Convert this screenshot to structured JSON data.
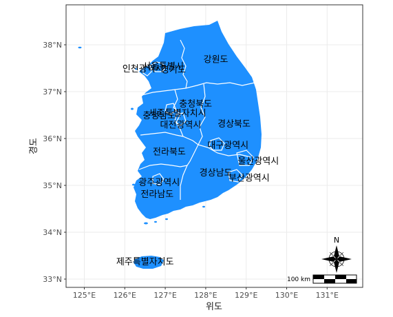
{
  "map": {
    "fill_color": "#1e90ff",
    "border_color": "#ffffff",
    "panel_border": "#333333",
    "grid_color": "#ebebeb",
    "axes": {
      "xlabel": "위도",
      "ylabel": "경도",
      "x_ticks": [
        "125°E",
        "126°E",
        "127°E",
        "128°E",
        "129°E",
        "130°E",
        "131°E"
      ],
      "y_ticks": [
        "38°N",
        "37°N",
        "36°N",
        "35°N",
        "34°N",
        "33°N"
      ],
      "x_range": [
        124.5,
        131.8
      ],
      "y_range": [
        32.85,
        38.9
      ]
    },
    "regions": [
      {
        "name": "인천광역시",
        "lon": 126.45,
        "lat": 37.5
      },
      {
        "name": "서울특별시",
        "lon": 126.95,
        "lat": 37.55
      },
      {
        "name": "경기도",
        "lon": 127.2,
        "lat": 37.48
      },
      {
        "name": "강원도",
        "lon": 128.25,
        "lat": 37.7
      },
      {
        "name": "충청북도",
        "lon": 127.75,
        "lat": 36.75
      },
      {
        "name": "세종특별자치시",
        "lon": 127.3,
        "lat": 36.55
      },
      {
        "name": "충청남도",
        "lon": 126.85,
        "lat": 36.5
      },
      {
        "name": "대전광역시",
        "lon": 127.38,
        "lat": 36.3
      },
      {
        "name": "경상북도",
        "lon": 128.7,
        "lat": 36.32
      },
      {
        "name": "전라북도",
        "lon": 127.1,
        "lat": 35.73
      },
      {
        "name": "대구광역시",
        "lon": 128.55,
        "lat": 35.87
      },
      {
        "name": "울산광역시",
        "lon": 129.3,
        "lat": 35.53
      },
      {
        "name": "경상남도",
        "lon": 128.25,
        "lat": 35.28
      },
      {
        "name": "부산광역시",
        "lon": 129.07,
        "lat": 35.17
      },
      {
        "name": "광주광역시",
        "lon": 126.85,
        "lat": 35.07
      },
      {
        "name": "전라남도",
        "lon": 126.8,
        "lat": 34.82
      },
      {
        "name": "제주특별자치도",
        "lon": 126.5,
        "lat": 33.38
      }
    ],
    "scale_bar": {
      "label": "100 km"
    },
    "north_arrow": {
      "label": "N",
      "icon": "compass-rose-icon"
    }
  }
}
